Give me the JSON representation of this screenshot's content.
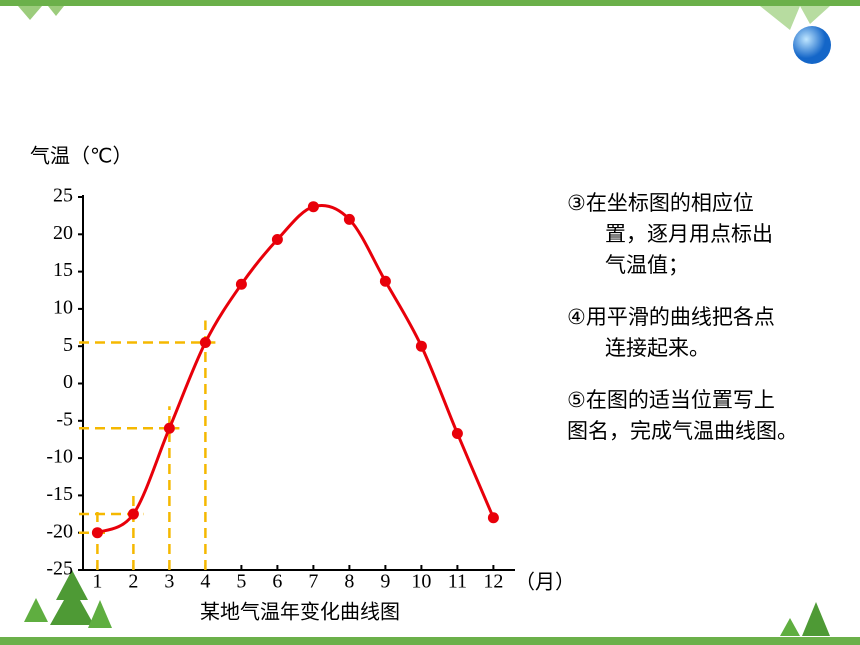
{
  "chart_data": {
    "type": "line",
    "y_label": "气温（℃）",
    "x_unit": "（月）",
    "title": "某地气温年变化曲线图",
    "x": [
      1,
      2,
      3,
      4,
      5,
      6,
      7,
      8,
      9,
      10,
      11,
      12
    ],
    "series": [
      {
        "color": "#e8000a",
        "values": [
          -20,
          -17.5,
          -6,
          5.5,
          13.3,
          19.3,
          23.7,
          22,
          13.7,
          5,
          -6.7,
          -18
        ]
      }
    ],
    "xlim": [
      0.6,
      12.6
    ],
    "xticks": [
      1,
      2,
      3,
      4,
      5,
      6,
      7,
      8,
      9,
      10,
      11,
      12
    ],
    "ylim": [
      -25,
      25
    ],
    "yticks": [
      -25,
      -20,
      -15,
      -10,
      -5,
      0,
      5,
      10,
      15,
      20,
      25
    ]
  },
  "notes": [
    [
      "③在坐标图的相应位",
      "置，逐月用点标出",
      "气温值；"
    ],
    [
      "④用平滑的曲线把各点",
      "连接起来。"
    ],
    [
      "⑤在图的适当位置写上",
      "图名，完成气温曲线图。"
    ]
  ]
}
